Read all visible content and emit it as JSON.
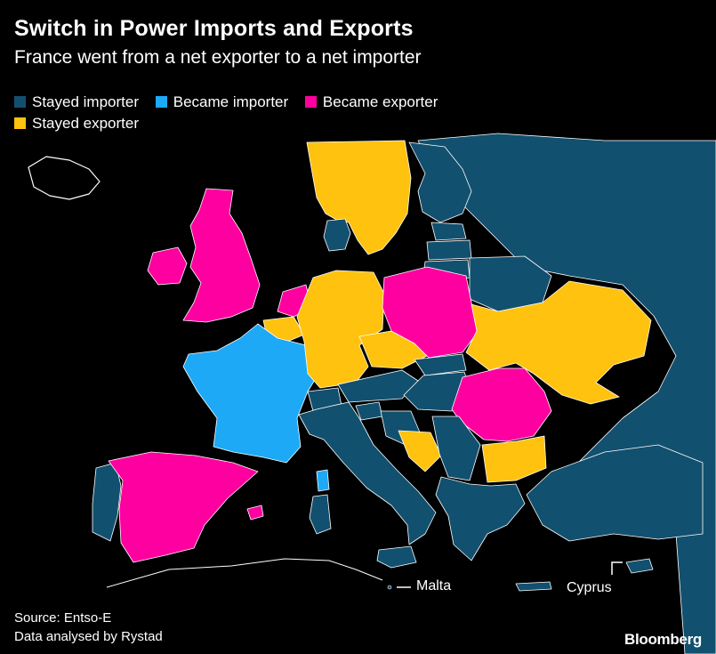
{
  "title": "Switch in Power Imports and Exports",
  "subtitle": "France went from a net exporter to a net importer",
  "legend": [
    {
      "label": "Stayed importer",
      "color": "#12506F"
    },
    {
      "label": "Became importer",
      "color": "#1DA9F5"
    },
    {
      "label": "Became exporter",
      "color": "#FF00A0"
    },
    {
      "label": "Stayed exporter",
      "color": "#FFC20E"
    }
  ],
  "labels": {
    "malta": "Malta",
    "cyprus": "Cyprus"
  },
  "source": {
    "line1": "Source: Entso-E",
    "line2": "Data analysed by Rystad"
  },
  "brand": "Bloomberg"
}
